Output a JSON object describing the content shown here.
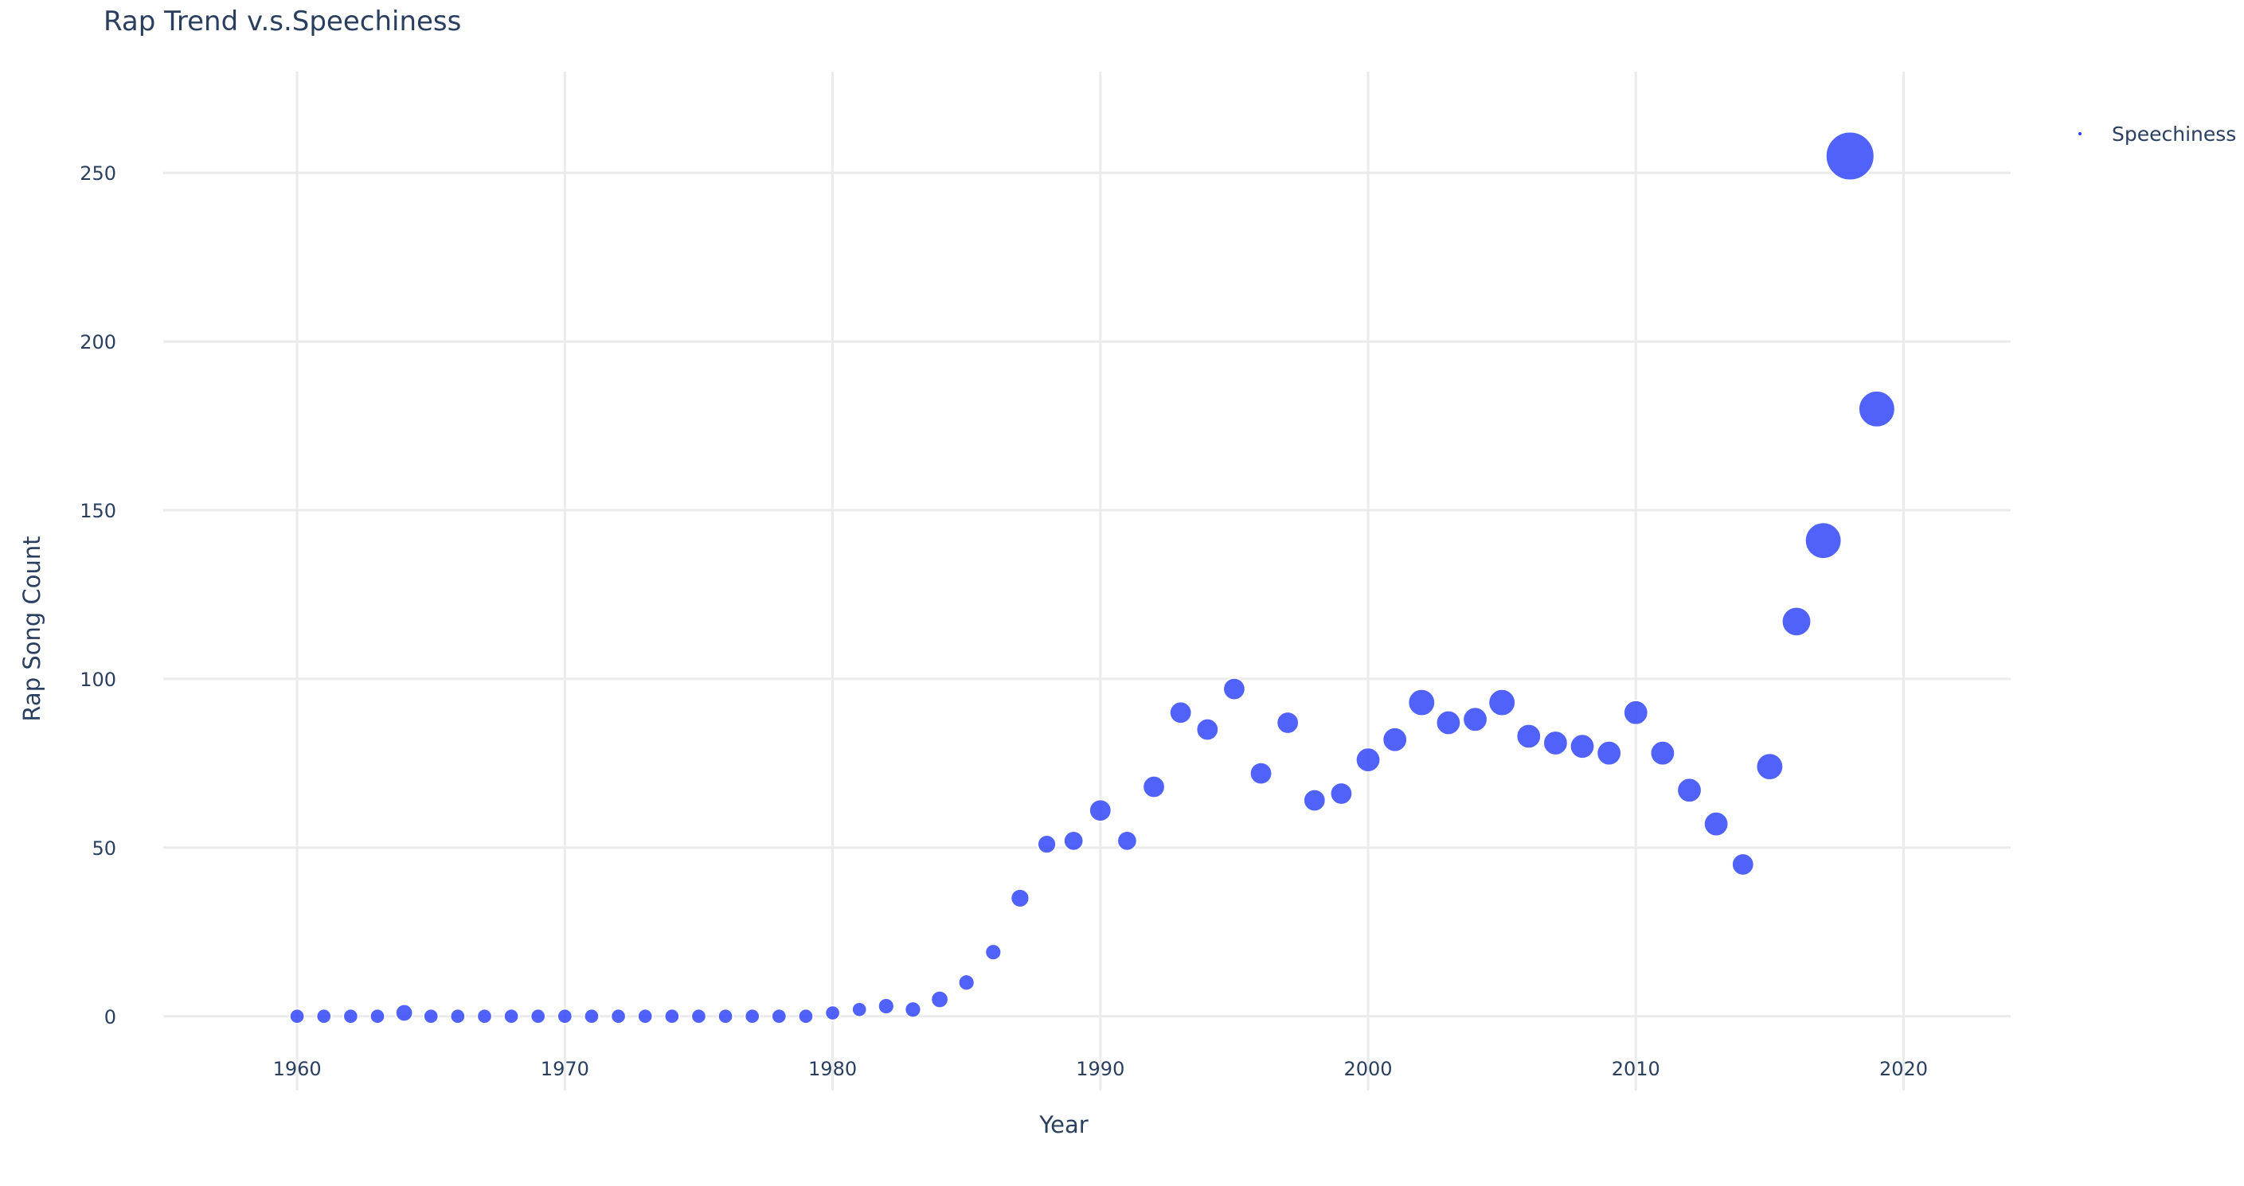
{
  "chart_data": {
    "type": "scatter",
    "title": "Rap Trend v.s.Speechiness",
    "xlabel": "Year",
    "ylabel": "Rap Song Count",
    "xlim": [
      1955,
      2024
    ],
    "ylim": [
      -22,
      280
    ],
    "x_ticks": [
      1960,
      1970,
      1980,
      1990,
      2000,
      2010,
      2020
    ],
    "y_ticks": [
      0,
      50,
      100,
      150,
      200,
      250
    ],
    "grid": true,
    "legend_position": "top-right",
    "marker_color": "#2a40f8",
    "marker_stroke": "#ffffff",
    "series": [
      {
        "name": "Speechiness",
        "x": [
          1960,
          1961,
          1962,
          1963,
          1964,
          1965,
          1966,
          1967,
          1968,
          1969,
          1970,
          1971,
          1972,
          1973,
          1974,
          1975,
          1976,
          1977,
          1978,
          1979,
          1980,
          1981,
          1982,
          1983,
          1984,
          1985,
          1986,
          1987,
          1988,
          1989,
          1990,
          1991,
          1992,
          1993,
          1994,
          1995,
          1996,
          1997,
          1998,
          1999,
          2000,
          2001,
          2002,
          2003,
          2004,
          2005,
          2006,
          2007,
          2008,
          2009,
          2010,
          2011,
          2012,
          2013,
          2014,
          2015,
          2016,
          2017,
          2018,
          2019
        ],
        "y": [
          0,
          0,
          0,
          0,
          1,
          0,
          0,
          0,
          0,
          0,
          0,
          0,
          0,
          0,
          0,
          0,
          0,
          0,
          0,
          0,
          1,
          2,
          3,
          2,
          5,
          10,
          19,
          35,
          51,
          52,
          61,
          52,
          68,
          90,
          85,
          97,
          72,
          87,
          64,
          66,
          76,
          82,
          93,
          87,
          88,
          93,
          83,
          81,
          80,
          78,
          90,
          78,
          67,
          57,
          45,
          74,
          117,
          141,
          255,
          180
        ],
        "size": [
          0.06,
          0.06,
          0.06,
          0.06,
          0.07,
          0.06,
          0.06,
          0.06,
          0.06,
          0.06,
          0.06,
          0.06,
          0.06,
          0.06,
          0.06,
          0.06,
          0.06,
          0.06,
          0.06,
          0.06,
          0.06,
          0.06,
          0.065,
          0.065,
          0.07,
          0.065,
          0.065,
          0.075,
          0.075,
          0.08,
          0.09,
          0.08,
          0.09,
          0.09,
          0.09,
          0.09,
          0.09,
          0.09,
          0.09,
          0.09,
          0.1,
          0.1,
          0.11,
          0.1,
          0.1,
          0.11,
          0.1,
          0.1,
          0.1,
          0.1,
          0.1,
          0.1,
          0.1,
          0.1,
          0.09,
          0.11,
          0.12,
          0.15,
          0.2,
          0.15
        ]
      }
    ]
  }
}
